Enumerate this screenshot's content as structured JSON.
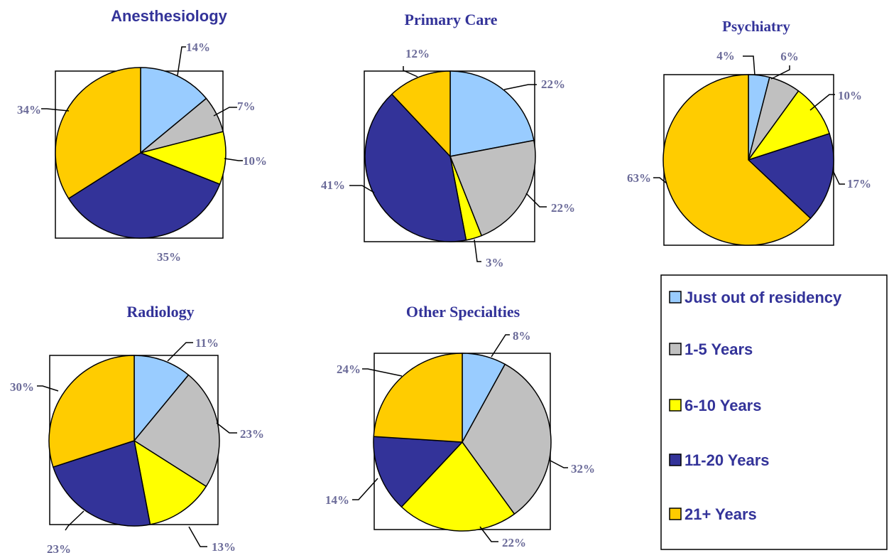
{
  "colors": {
    "just_out": "#99ccff",
    "y1_5": "#c0c0c0",
    "y6_10": "#ffff00",
    "y11_20": "#333399",
    "y21_plus": "#ffcc00",
    "title": "#333399",
    "label": "#6b6b99"
  },
  "legend": {
    "items": [
      {
        "label": "Just out of residency",
        "color": "#99ccff"
      },
      {
        "label": "1-5 Years",
        "color": "#c0c0c0"
      },
      {
        "label": "6-10 Years",
        "color": "#ffff00"
      },
      {
        "label": "11-20 Years",
        "color": "#333399"
      },
      {
        "label": "21+ Years",
        "color": "#ffcc00"
      }
    ]
  },
  "chart_data": [
    {
      "type": "pie",
      "title": "Anesthesiology",
      "categories": [
        "Just out of residency",
        "1-5 Years",
        "6-10 Years",
        "11-20 Years",
        "21+ Years"
      ],
      "values": [
        14,
        7,
        10,
        35,
        34
      ],
      "labels": [
        "14%",
        "7%",
        "10%",
        "35%",
        "34%"
      ]
    },
    {
      "type": "pie",
      "title": "Primary Care",
      "categories": [
        "Just out of residency",
        "1-5 Years",
        "6-10 Years",
        "11-20 Years",
        "21+ Years"
      ],
      "values": [
        22,
        22,
        3,
        41,
        12
      ],
      "labels": [
        "22%",
        "22%",
        "3%",
        "41%",
        "12%"
      ]
    },
    {
      "type": "pie",
      "title": "Psychiatry",
      "categories": [
        "Just out of residency",
        "1-5 Years",
        "6-10 Years",
        "11-20 Years",
        "21+ Years"
      ],
      "values": [
        4,
        6,
        10,
        17,
        63
      ],
      "labels": [
        "4%",
        "6%",
        "10%",
        "17%",
        "63%"
      ]
    },
    {
      "type": "pie",
      "title": "Radiology",
      "categories": [
        "Just out of residency",
        "1-5 Years",
        "6-10 Years",
        "11-20 Years",
        "21+ Years"
      ],
      "values": [
        11,
        23,
        13,
        23,
        30
      ],
      "labels": [
        "11%",
        "23%",
        "13%",
        "23%",
        "30%"
      ]
    },
    {
      "type": "pie",
      "title": "Other Specialties",
      "categories": [
        "Just out of residency",
        "1-5 Years",
        "6-10 Years",
        "11-20 Years",
        "21+ Years"
      ],
      "values": [
        8,
        32,
        22,
        14,
        24
      ],
      "labels": [
        "8%",
        "32%",
        "22%",
        "14%",
        "24%"
      ]
    }
  ]
}
